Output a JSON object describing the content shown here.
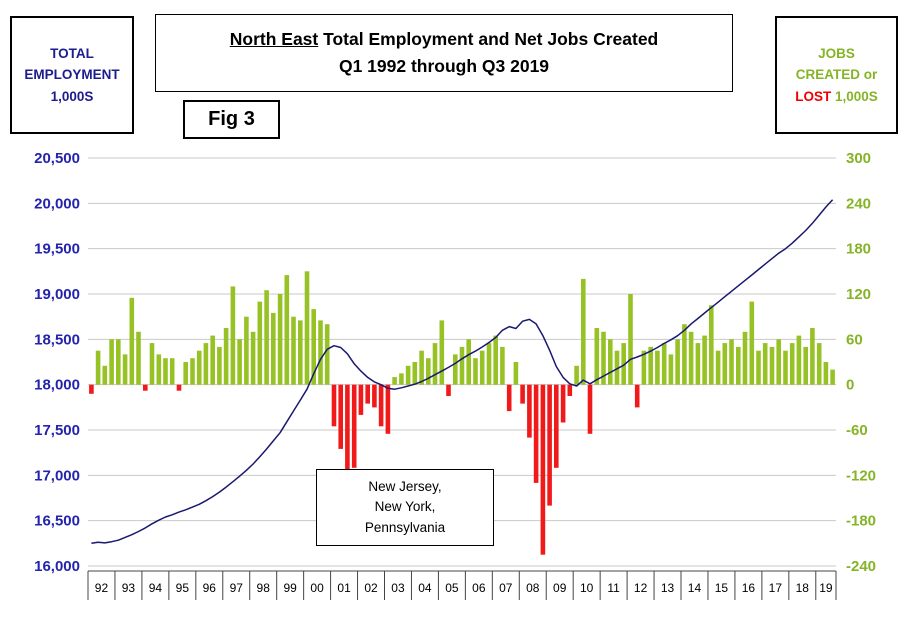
{
  "header": {
    "left_box": {
      "lines": [
        "TOTAL",
        "EMPLOYMENT",
        "1,000S"
      ]
    },
    "title": {
      "region": "North East",
      "rest": " Total Employment and Net Jobs Created",
      "line2": "Q1 1992 through Q3 2019"
    },
    "fig_label": "Fig 3",
    "right_box": {
      "line1": "JOBS",
      "line2": "CREATED or",
      "lost": "LOST",
      "line3_rest": " 1,000S"
    }
  },
  "annotation": {
    "lines": [
      "New Jersey,",
      "New York,",
      "Pennsylvania"
    ]
  },
  "colors": {
    "axis_blue": "#2323AE",
    "title_navy": "#1C1C8F",
    "green": "#85B427",
    "red": "#F00000",
    "bar_green": "#97C226",
    "bar_red": "#F01A1A",
    "line_navy": "#191970",
    "grid": "#C9C9C9",
    "axis_line": "#444444",
    "year_text": "#000000"
  },
  "chart_data": {
    "type": "bar+line",
    "title": "North East Total Employment and Net Jobs Created Q1 1992 through Q3 2019",
    "left_axis": {
      "label": "TOTAL EMPLOYMENT 1,000S",
      "min": 16000,
      "max": 20500,
      "step": 500,
      "ticks": [
        "16,000",
        "16,500",
        "17,000",
        "17,500",
        "18,000",
        "18,500",
        "19,000",
        "19,500",
        "20,000",
        "20,500"
      ]
    },
    "right_axis": {
      "label": "JOBS CREATED or LOST 1,000S",
      "min": -240,
      "max": 300,
      "step": 60,
      "ticks": [
        "-240",
        "-180",
        "-120",
        "-60",
        "0",
        "60",
        "120",
        "180",
        "240",
        "300"
      ]
    },
    "x_axis": {
      "year_labels": [
        "92",
        "93",
        "94",
        "95",
        "96",
        "97",
        "98",
        "99",
        "00",
        "01",
        "02",
        "03",
        "04",
        "05",
        "06",
        "07",
        "08",
        "09",
        "10",
        "11",
        "12",
        "13",
        "14",
        "15",
        "16",
        "17",
        "18",
        "19"
      ],
      "quarters_per_year": 4,
      "quarters_in_final_year": 3
    },
    "bars": {
      "name": "Net Jobs Created or Lost (1,000s, quarterly)",
      "values": [
        -12,
        45,
        25,
        60,
        60,
        40,
        115,
        70,
        -8,
        55,
        40,
        35,
        35,
        -8,
        30,
        35,
        45,
        55,
        65,
        50,
        75,
        130,
        60,
        90,
        70,
        110,
        125,
        95,
        120,
        145,
        90,
        85,
        150,
        100,
        85,
        80,
        -55,
        -85,
        -115,
        -110,
        -40,
        -25,
        -30,
        -55,
        -65,
        10,
        15,
        25,
        30,
        45,
        35,
        55,
        85,
        -15,
        40,
        50,
        60,
        35,
        45,
        55,
        65,
        50,
        -35,
        30,
        -25,
        -70,
        -130,
        -225,
        -160,
        -110,
        -50,
        -15,
        25,
        140,
        -65,
        75,
        70,
        60,
        45,
        55,
        120,
        -30,
        45,
        50,
        45,
        55,
        40,
        60,
        80,
        70,
        55,
        65,
        105,
        45,
        55,
        60,
        50,
        70,
        110,
        45,
        55,
        50,
        60,
        45,
        55,
        65,
        50,
        75,
        55,
        30,
        20
      ]
    },
    "line": {
      "name": "Total Employment (1,000s, quarterly)",
      "values": [
        16250,
        16262,
        16255,
        16268,
        16285,
        16315,
        16345,
        16380,
        16420,
        16465,
        16505,
        16540,
        16565,
        16595,
        16620,
        16650,
        16680,
        16720,
        16765,
        16815,
        16870,
        16930,
        16990,
        17055,
        17125,
        17205,
        17290,
        17380,
        17470,
        17590,
        17710,
        17830,
        17950,
        18120,
        18280,
        18390,
        18430,
        18410,
        18340,
        18230,
        18150,
        18080,
        18030,
        18000,
        17960,
        17950,
        17965,
        17985,
        18005,
        18035,
        18070,
        18110,
        18150,
        18190,
        18235,
        18285,
        18330,
        18370,
        18415,
        18465,
        18520,
        18600,
        18640,
        18620,
        18700,
        18720,
        18670,
        18540,
        18380,
        18200,
        18080,
        18010,
        17985,
        18050,
        18010,
        18055,
        18095,
        18135,
        18175,
        18215,
        18280,
        18305,
        18335,
        18370,
        18410,
        18455,
        18495,
        18540,
        18600,
        18670,
        18730,
        18790,
        18850,
        18910,
        18970,
        19030,
        19090,
        19150,
        19210,
        19270,
        19330,
        19390,
        19450,
        19500,
        19560,
        19630,
        19700,
        19780,
        19870,
        19960,
        20040
      ]
    }
  }
}
